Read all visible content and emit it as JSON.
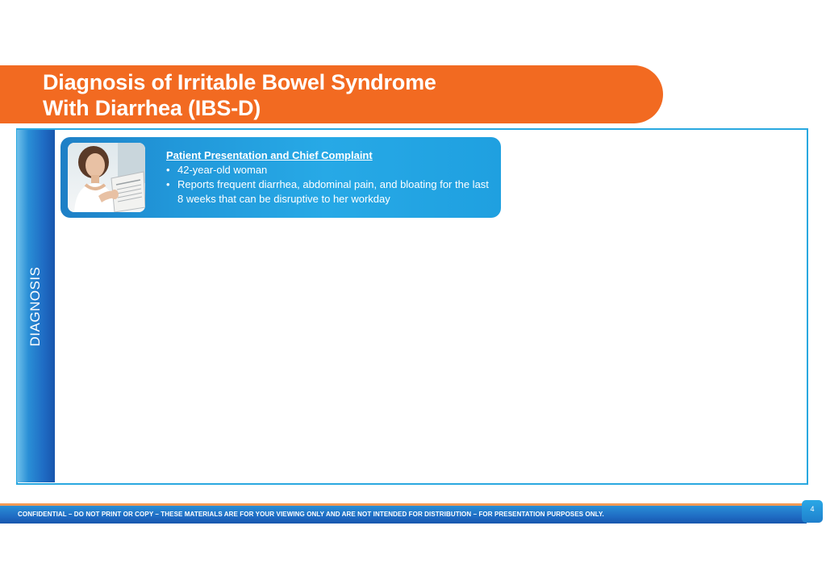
{
  "slide": {
    "title_line1": "Diagnosis of Irritable Bowel Syndrome",
    "title_line2": "With Diarrhea (IBS-D)",
    "side_label": "DIAGNOSIS",
    "page_number": "4"
  },
  "patient_card": {
    "heading": "Patient Presentation and Chief Complaint",
    "bullet_symbol": "•",
    "bullets": [
      "42-year-old woman",
      "Reports frequent diarrhea, abdominal pain, and bloating for the last 8 weeks that can be disruptive to her workday"
    ],
    "photo_icon": "woman-reading-newspaper-icon"
  },
  "footer": {
    "disclaimer": "CONFIDENTIAL – DO NOT PRINT OR COPY – THESE MATERIALS ARE FOR YOUR VIEWING ONLY AND ARE NOT INTENDED FOR DISTRIBUTION – FOR PRESENTATION PURPOSES ONLY."
  },
  "colors": {
    "title_orange": "#f26a21",
    "frame_blue": "#29a8e0",
    "dark_blue": "#1856ad",
    "card_blue": "#27a9e6"
  }
}
